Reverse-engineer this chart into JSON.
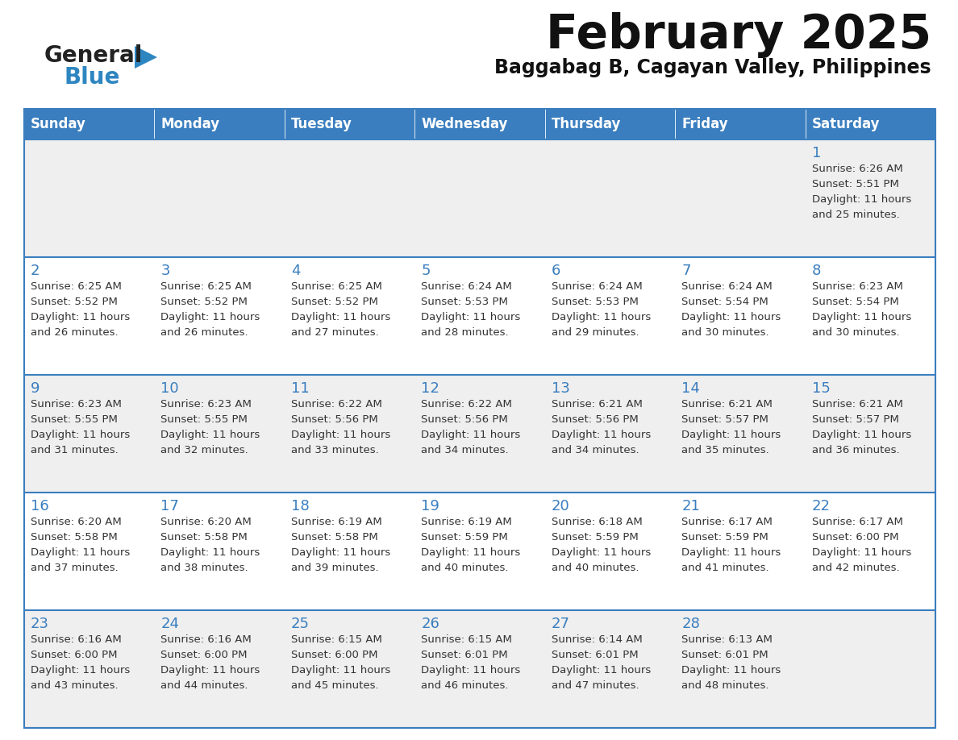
{
  "title": "February 2025",
  "subtitle": "Baggabag B, Cagayan Valley, Philippines",
  "header_bg": "#3a7ebf",
  "header_text_color": "#FFFFFF",
  "days_of_week": [
    "Sunday",
    "Monday",
    "Tuesday",
    "Wednesday",
    "Thursday",
    "Friday",
    "Saturday"
  ],
  "cell_bg_even": "#EFEFEF",
  "cell_bg_odd": "#FFFFFF",
  "border_color": "#3a7ebf",
  "day_num_color": "#3a7ebf",
  "text_color": "#333333",
  "logo_general_color": "#222222",
  "logo_blue_color": "#2E86C1",
  "calendar": [
    [
      null,
      null,
      null,
      null,
      null,
      null,
      {
        "day": 1,
        "sunrise": "6:26 AM",
        "sunset": "5:51 PM",
        "daylight": "11 hours and 25 minutes."
      }
    ],
    [
      {
        "day": 2,
        "sunrise": "6:25 AM",
        "sunset": "5:52 PM",
        "daylight": "11 hours and 26 minutes."
      },
      {
        "day": 3,
        "sunrise": "6:25 AM",
        "sunset": "5:52 PM",
        "daylight": "11 hours and 26 minutes."
      },
      {
        "day": 4,
        "sunrise": "6:25 AM",
        "sunset": "5:52 PM",
        "daylight": "11 hours and 27 minutes."
      },
      {
        "day": 5,
        "sunrise": "6:24 AM",
        "sunset": "5:53 PM",
        "daylight": "11 hours and 28 minutes."
      },
      {
        "day": 6,
        "sunrise": "6:24 AM",
        "sunset": "5:53 PM",
        "daylight": "11 hours and 29 minutes."
      },
      {
        "day": 7,
        "sunrise": "6:24 AM",
        "sunset": "5:54 PM",
        "daylight": "11 hours and 30 minutes."
      },
      {
        "day": 8,
        "sunrise": "6:23 AM",
        "sunset": "5:54 PM",
        "daylight": "11 hours and 30 minutes."
      }
    ],
    [
      {
        "day": 9,
        "sunrise": "6:23 AM",
        "sunset": "5:55 PM",
        "daylight": "11 hours and 31 minutes."
      },
      {
        "day": 10,
        "sunrise": "6:23 AM",
        "sunset": "5:55 PM",
        "daylight": "11 hours and 32 minutes."
      },
      {
        "day": 11,
        "sunrise": "6:22 AM",
        "sunset": "5:56 PM",
        "daylight": "11 hours and 33 minutes."
      },
      {
        "day": 12,
        "sunrise": "6:22 AM",
        "sunset": "5:56 PM",
        "daylight": "11 hours and 34 minutes."
      },
      {
        "day": 13,
        "sunrise": "6:21 AM",
        "sunset": "5:56 PM",
        "daylight": "11 hours and 34 minutes."
      },
      {
        "day": 14,
        "sunrise": "6:21 AM",
        "sunset": "5:57 PM",
        "daylight": "11 hours and 35 minutes."
      },
      {
        "day": 15,
        "sunrise": "6:21 AM",
        "sunset": "5:57 PM",
        "daylight": "11 hours and 36 minutes."
      }
    ],
    [
      {
        "day": 16,
        "sunrise": "6:20 AM",
        "sunset": "5:58 PM",
        "daylight": "11 hours and 37 minutes."
      },
      {
        "day": 17,
        "sunrise": "6:20 AM",
        "sunset": "5:58 PM",
        "daylight": "11 hours and 38 minutes."
      },
      {
        "day": 18,
        "sunrise": "6:19 AM",
        "sunset": "5:58 PM",
        "daylight": "11 hours and 39 minutes."
      },
      {
        "day": 19,
        "sunrise": "6:19 AM",
        "sunset": "5:59 PM",
        "daylight": "11 hours and 40 minutes."
      },
      {
        "day": 20,
        "sunrise": "6:18 AM",
        "sunset": "5:59 PM",
        "daylight": "11 hours and 40 minutes."
      },
      {
        "day": 21,
        "sunrise": "6:17 AM",
        "sunset": "5:59 PM",
        "daylight": "11 hours and 41 minutes."
      },
      {
        "day": 22,
        "sunrise": "6:17 AM",
        "sunset": "6:00 PM",
        "daylight": "11 hours and 42 minutes."
      }
    ],
    [
      {
        "day": 23,
        "sunrise": "6:16 AM",
        "sunset": "6:00 PM",
        "daylight": "11 hours and 43 minutes."
      },
      {
        "day": 24,
        "sunrise": "6:16 AM",
        "sunset": "6:00 PM",
        "daylight": "11 hours and 44 minutes."
      },
      {
        "day": 25,
        "sunrise": "6:15 AM",
        "sunset": "6:00 PM",
        "daylight": "11 hours and 45 minutes."
      },
      {
        "day": 26,
        "sunrise": "6:15 AM",
        "sunset": "6:01 PM",
        "daylight": "11 hours and 46 minutes."
      },
      {
        "day": 27,
        "sunrise": "6:14 AM",
        "sunset": "6:01 PM",
        "daylight": "11 hours and 47 minutes."
      },
      {
        "day": 28,
        "sunrise": "6:13 AM",
        "sunset": "6:01 PM",
        "daylight": "11 hours and 48 minutes."
      },
      null
    ]
  ]
}
